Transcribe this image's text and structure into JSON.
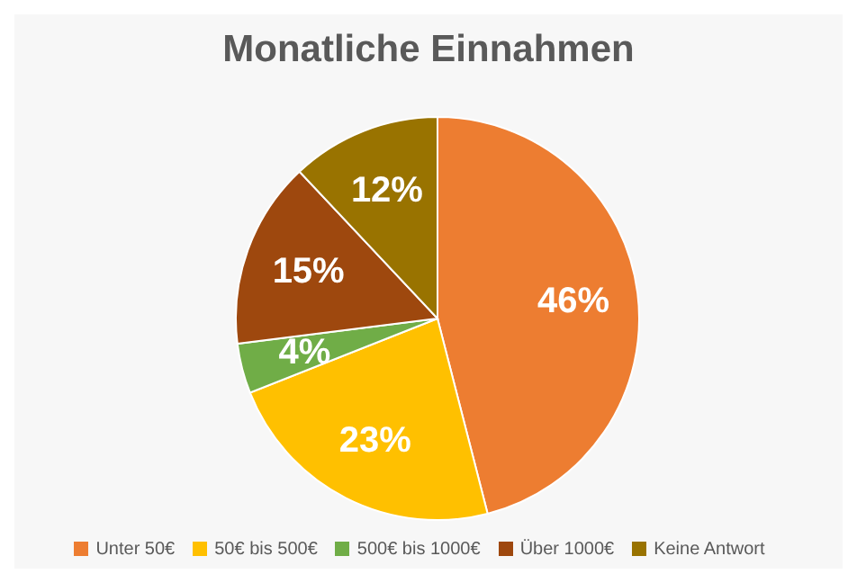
{
  "chart_data": {
    "type": "pie",
    "title": "Monatliche Einnahmen",
    "categories": [
      "Unter 50€",
      "50€ bis 500€",
      "500€ bis 1000€",
      "Über 1000€",
      "Keine Antwort"
    ],
    "values": [
      46,
      23,
      4,
      15,
      12
    ],
    "colors": [
      "#ed7d31",
      "#ffc000",
      "#70ad47",
      "#9e480e",
      "#997300"
    ],
    "value_labels": [
      "46%",
      "23%",
      "4%",
      "15%",
      "12%"
    ],
    "legend": "bottom"
  }
}
